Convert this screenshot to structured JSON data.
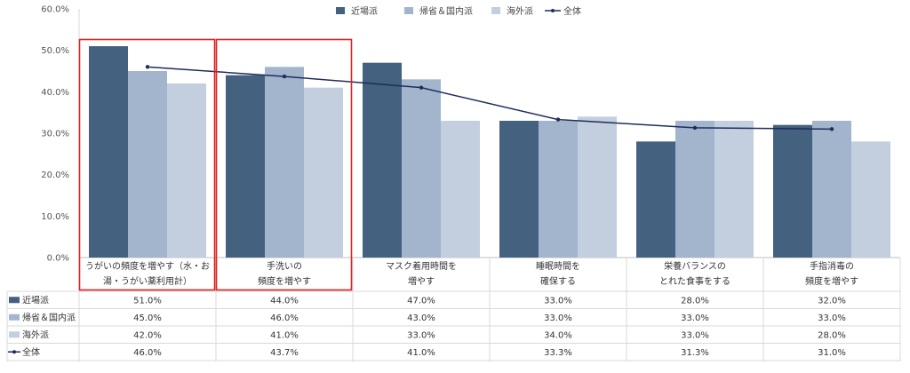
{
  "chart_data": {
    "type": "bar",
    "categories": [
      [
        "うがいの頻度を増やす（水・お",
        "湯・うがい薬利用計）"
      ],
      [
        "手洗いの",
        "頻度を増やす"
      ],
      [
        "マスク着用時間を",
        "増やす"
      ],
      [
        "睡眠時間を",
        "確保する"
      ],
      [
        "栄養バランスの",
        "とれた食事をする"
      ],
      [
        "手指消毒の",
        "頻度を増やす"
      ]
    ],
    "series": [
      {
        "name": "近場派",
        "kind": "bar",
        "color": "#44617f",
        "values": [
          51.0,
          44.0,
          47.0,
          33.0,
          28.0,
          32.0
        ]
      },
      {
        "name": "帰省＆国内派",
        "kind": "bar",
        "color": "#a2b5cd",
        "values": [
          45.0,
          46.0,
          43.0,
          33.0,
          33.0,
          33.0
        ]
      },
      {
        "name": "海外派",
        "kind": "bar",
        "color": "#c3cfdf",
        "values": [
          42.0,
          41.0,
          33.0,
          34.0,
          33.0,
          28.0
        ]
      },
      {
        "name": "全体",
        "kind": "line",
        "color": "#1f2d5c",
        "values": [
          46.0,
          43.7,
          41.0,
          33.3,
          31.3,
          31.0
        ]
      }
    ],
    "yticks": [
      "0.0%",
      "10.0%",
      "20.0%",
      "30.0%",
      "40.0%",
      "50.0%",
      "60.0%"
    ],
    "ylim": [
      0,
      60
    ],
    "value_suffix": "%",
    "highlighted_categories": [
      0,
      1
    ],
    "highlight_color": "#e02020",
    "legend_position": "top",
    "data_table": true,
    "title": "",
    "xlabel": "",
    "ylabel": ""
  }
}
